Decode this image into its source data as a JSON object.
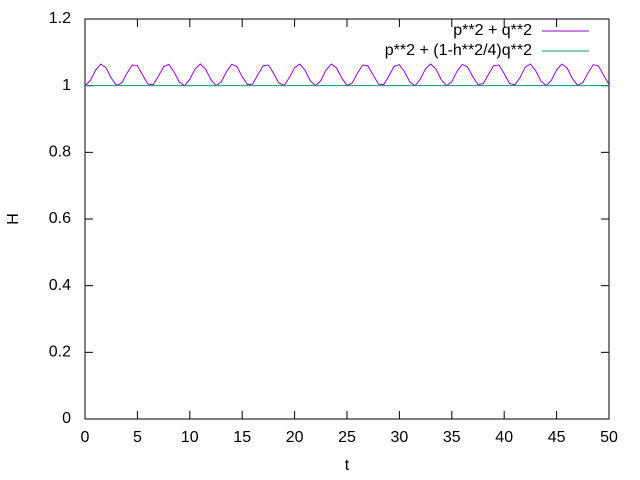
{
  "chart_data": {
    "type": "line",
    "xlabel": "t",
    "ylabel": "H",
    "xlim": [
      0,
      50
    ],
    "ylim": [
      0,
      1.2
    ],
    "xticks": [
      0,
      5,
      10,
      15,
      20,
      25,
      30,
      35,
      40,
      45,
      50
    ],
    "yticks": [
      0,
      0.2,
      0.4,
      0.6,
      0.8,
      1,
      1.2
    ],
    "legend": "top-right",
    "x": [
      0,
      0.5,
      1,
      1.5,
      2,
      2.5,
      3,
      3.5,
      4,
      4.5,
      5,
      5.5,
      6,
      6.5,
      7,
      7.5,
      8,
      8.5,
      9,
      9.5,
      10,
      10.5,
      11,
      11.5,
      12,
      12.5,
      13,
      13.5,
      14,
      14.5,
      15,
      15.5,
      16,
      16.5,
      17,
      17.5,
      18,
      18.5,
      19,
      19.5,
      20,
      20.5,
      21,
      21.5,
      22,
      22.5,
      23,
      23.5,
      24,
      24.5,
      25,
      25.5,
      26,
      26.5,
      27,
      27.5,
      28,
      28.5,
      29,
      29.5,
      30,
      30.5,
      31,
      31.5,
      32,
      32.5,
      33,
      33.5,
      34,
      34.5,
      35,
      35.5,
      36,
      36.5,
      37,
      37.5,
      38,
      38.5,
      39,
      39.5,
      40,
      40.5,
      41,
      41.5,
      42,
      42.5,
      43,
      43.5,
      44,
      44.5,
      45,
      45.5,
      46,
      46.5,
      47,
      47.5,
      48,
      48.5,
      49,
      49.5,
      50
    ],
    "series": [
      {
        "name": "p**2 + q**2",
        "color": "#9400d3",
        "values": [
          1,
          1.015,
          1.046,
          1.065,
          1.054,
          1.023,
          1.001,
          1.008,
          1.037,
          1.062,
          1.06,
          1.032,
          1.005,
          1.003,
          1.028,
          1.057,
          1.064,
          1.041,
          1.011,
          1.0,
          1.019,
          1.05,
          1.065,
          1.05,
          1.019,
          1.0,
          1.011,
          1.042,
          1.064,
          1.057,
          1.027,
          1.003,
          1.005,
          1.033,
          1.06,
          1.062,
          1.037,
          1.008,
          1.001,
          1.024,
          1.054,
          1.065,
          1.046,
          1.014,
          1.0,
          1.015,
          1.047,
          1.065,
          1.053,
          1.023,
          1.001,
          1.008,
          1.038,
          1.062,
          1.059,
          1.032,
          1.005,
          1.003,
          1.029,
          1.058,
          1.063,
          1.041,
          1.011,
          1.0,
          1.02,
          1.051,
          1.065,
          1.049,
          1.018,
          1.0,
          1.012,
          1.043,
          1.064,
          1.056,
          1.027,
          1.003,
          1.006,
          1.034,
          1.06,
          1.062,
          1.036,
          1.007,
          1.002,
          1.024,
          1.055,
          1.065,
          1.045,
          1.014,
          1.0,
          1.016,
          1.047,
          1.065,
          1.053,
          1.022,
          1.001,
          1.009,
          1.038,
          1.063,
          1.059,
          1.031,
          1.004
        ]
      },
      {
        "name": "p**2 + (1-h**2/4)q**2",
        "color": "#009e73",
        "values": [
          1,
          1,
          1,
          1,
          1,
          1,
          1,
          1,
          1,
          1,
          1,
          1,
          1,
          1,
          1,
          1,
          1,
          1,
          1,
          1,
          1,
          1,
          1,
          1,
          1,
          1,
          1,
          1,
          1,
          1,
          1,
          1,
          1,
          1,
          1,
          1,
          1,
          1,
          1,
          1,
          1,
          1,
          1,
          1,
          1,
          1,
          1,
          1,
          1,
          1,
          1,
          1,
          1,
          1,
          1,
          1,
          1,
          1,
          1,
          1,
          1,
          1,
          1,
          1,
          1,
          1,
          1,
          1,
          1,
          1,
          1,
          1,
          1,
          1,
          1,
          1,
          1,
          1,
          1,
          1,
          1,
          1,
          1,
          1,
          1,
          1,
          1,
          1,
          1,
          1,
          1,
          1,
          1,
          1,
          1,
          1,
          1,
          1,
          1,
          1,
          1
        ]
      }
    ]
  }
}
